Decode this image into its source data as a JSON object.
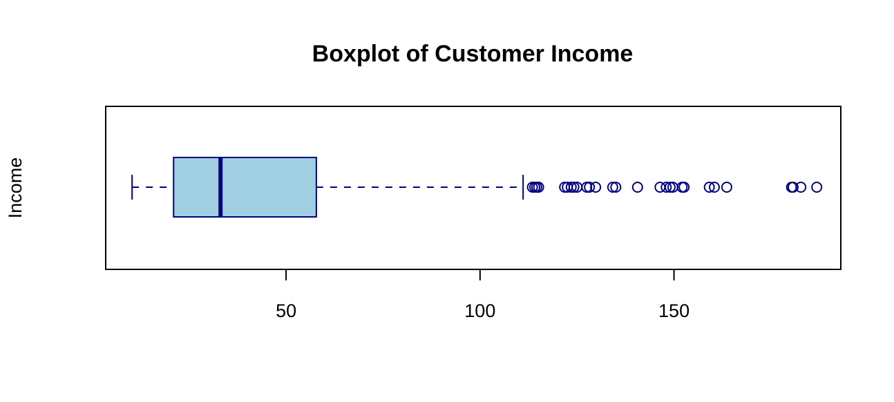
{
  "chart_data": {
    "type": "boxplot",
    "orientation": "horizontal",
    "title": "Boxplot of Customer Income",
    "xlabel": "",
    "ylabel": "Income",
    "xlim": [
      3.5,
      193
    ],
    "x_ticks": [
      50,
      100,
      150
    ],
    "x_tick_labels": [
      "50",
      "100",
      "150"
    ],
    "grid": false,
    "legend": "none",
    "colors": {
      "box_fill": "#A0CFE1",
      "stroke": "#000080",
      "frame": "#000000"
    },
    "series": [
      {
        "lower_whisker": 10.3,
        "q1": 21.0,
        "median": 33.1,
        "q3": 57.8,
        "upper_whisker": 111.1,
        "outliers": [
          113.5,
          114.1,
          114.6,
          115.1,
          121.8,
          122.5,
          123.5,
          124.2,
          125.0,
          127.5,
          128.2,
          129.8,
          134.2,
          135.0,
          140.6,
          146.4,
          148.0,
          149.0,
          149.7,
          152.1,
          152.6,
          159.1,
          160.4,
          163.6,
          180.3,
          180.7,
          182.7,
          186.8
        ]
      }
    ]
  }
}
